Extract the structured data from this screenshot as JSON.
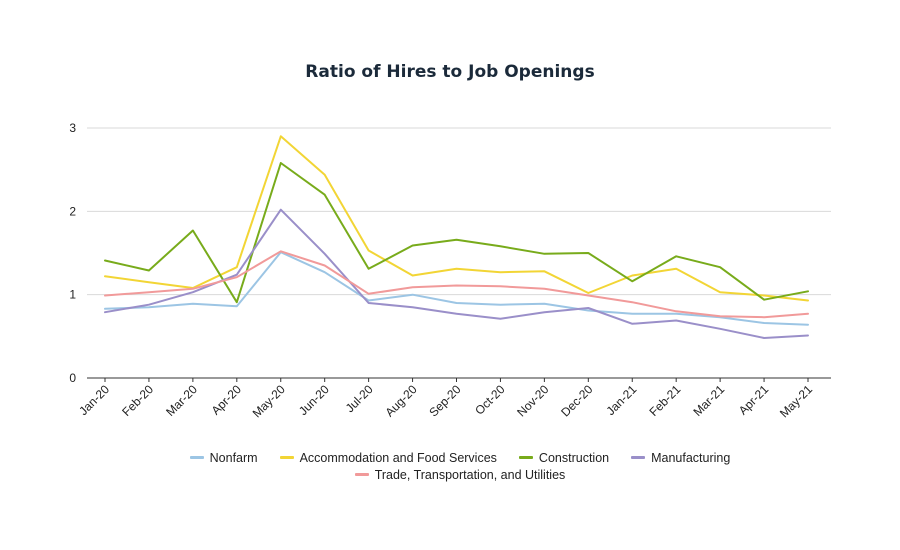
{
  "chart_data": {
    "type": "line",
    "title": "Ratio of Hires to Job Openings",
    "categories": [
      "Jan-20",
      "Feb-20",
      "Mar-20",
      "Apr-20",
      "May-20",
      "Jun-20",
      "Jul-20",
      "Aug-20",
      "Sep-20",
      "Oct-20",
      "Nov-20",
      "Dec-20",
      "Jan-21",
      "Feb-21",
      "Mar-21",
      "Apr-21",
      "May-21"
    ],
    "ylim": [
      0,
      3
    ],
    "yticks": [
      "0",
      "1",
      "2",
      "3"
    ],
    "grid": true,
    "legend_position": "bottom",
    "series": [
      {
        "name": "Nonfarm",
        "color": "#9cc5e4",
        "values": [
          0.83,
          0.85,
          0.89,
          0.86,
          1.51,
          1.27,
          0.93,
          1.0,
          0.9,
          0.88,
          0.89,
          0.81,
          0.77,
          0.77,
          0.73,
          0.66,
          0.64
        ]
      },
      {
        "name": "Accommodation and Food Services",
        "color": "#f2d535",
        "values": [
          1.22,
          1.15,
          1.08,
          1.33,
          2.9,
          2.44,
          1.53,
          1.23,
          1.31,
          1.27,
          1.28,
          1.02,
          1.23,
          1.31,
          1.03,
          0.99,
          0.93
        ]
      },
      {
        "name": "Construction",
        "color": "#78ab1b",
        "values": [
          1.41,
          1.29,
          1.77,
          0.91,
          2.58,
          2.2,
          1.31,
          1.59,
          1.66,
          1.58,
          1.49,
          1.5,
          1.16,
          1.46,
          1.33,
          0.94,
          1.04
        ]
      },
      {
        "name": "Manufacturing",
        "color": "#9a8fc9",
        "values": [
          0.79,
          0.88,
          1.03,
          1.24,
          2.02,
          1.49,
          0.9,
          0.85,
          0.77,
          0.71,
          0.79,
          0.84,
          0.65,
          0.69,
          0.59,
          0.48,
          0.51
        ]
      },
      {
        "name": "Trade, Transportation, and Utilities",
        "color": "#f19a9a",
        "values": [
          0.99,
          1.03,
          1.07,
          1.21,
          1.52,
          1.35,
          1.01,
          1.09,
          1.11,
          1.1,
          1.07,
          0.99,
          0.91,
          0.8,
          0.74,
          0.73,
          0.77
        ]
      }
    ]
  }
}
